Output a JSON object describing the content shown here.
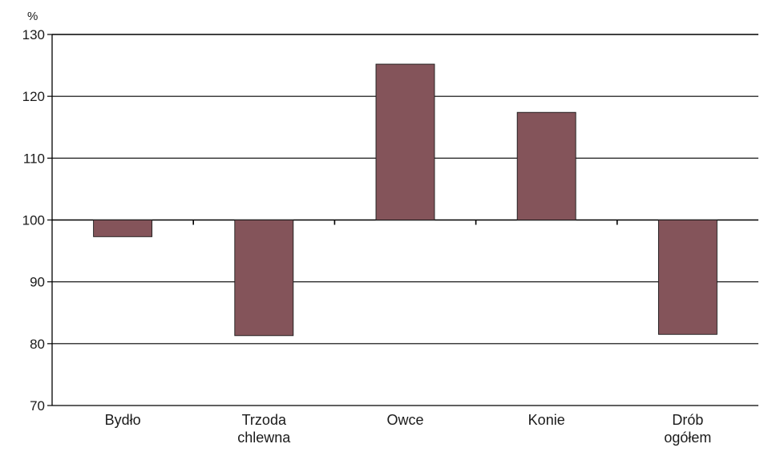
{
  "chart_data": {
    "type": "bar",
    "ylabel": "%",
    "ylim": [
      70,
      130
    ],
    "yticks": [
      70,
      80,
      90,
      100,
      110,
      120,
      130
    ],
    "baseline": 100,
    "grid": true,
    "bar_color": "#84545a",
    "categories": [
      [
        "Bydło"
      ],
      [
        "Trzoda",
        "chlewna"
      ],
      [
        "Owce"
      ],
      [
        "Konie"
      ],
      [
        "Drób",
        "ogółem"
      ]
    ],
    "values": [
      97.3,
      81.3,
      125.2,
      117.4,
      81.5
    ]
  }
}
